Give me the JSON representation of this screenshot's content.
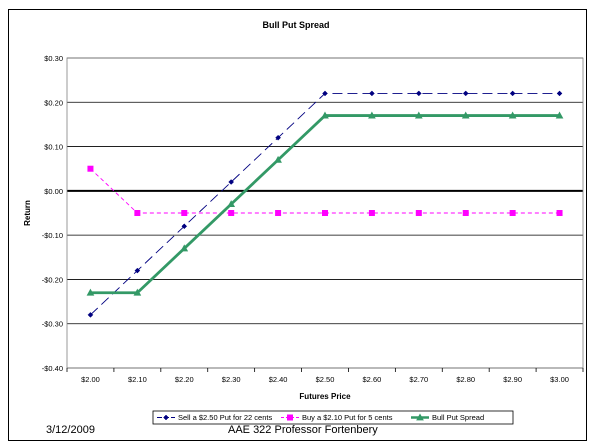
{
  "chart_data": {
    "type": "line",
    "title": "Bull Put Spread",
    "xlabel": "Futures Price",
    "ylabel": "Return",
    "categories": [
      "$2.00",
      "$2.10",
      "$2.20",
      "$2.30",
      "$2.40",
      "$2.50",
      "$2.60",
      "$2.70",
      "$2.80",
      "$2.90",
      "$3.00"
    ],
    "ylim": [
      -0.4,
      0.3
    ],
    "yticks": [
      {
        "value": 0.3,
        "label": "$0.30"
      },
      {
        "value": 0.2,
        "label": "$0.20"
      },
      {
        "value": 0.1,
        "label": "$0.10"
      },
      {
        "value": 0.0,
        "label": "$0.00"
      },
      {
        "value": -0.1,
        "label": "-$0.10"
      },
      {
        "value": -0.2,
        "label": "-$0.20"
      },
      {
        "value": -0.3,
        "label": "-$0.30"
      },
      {
        "value": -0.4,
        "label": "-$0.40"
      }
    ],
    "grid": true,
    "legend_position": "bottom",
    "series": [
      {
        "name": "Sell a $2.50 Put for 22 cents",
        "color": "#000080",
        "dash": "dashed",
        "marker": "diamond",
        "values": [
          -0.28,
          -0.18,
          -0.08,
          0.02,
          0.12,
          0.22,
          0.22,
          0.22,
          0.22,
          0.22,
          0.22
        ]
      },
      {
        "name": "Buy a $2.10 Put for 5 cents",
        "color": "#ff00ff",
        "dash": "dashed",
        "marker": "square",
        "values": [
          0.05,
          -0.05,
          -0.05,
          -0.05,
          -0.05,
          -0.05,
          -0.05,
          -0.05,
          -0.05,
          -0.05,
          -0.05
        ]
      },
      {
        "name": "Bull Put Spread",
        "color": "#339966",
        "dash": "solid",
        "marker": "triangle",
        "values": [
          -0.23,
          -0.23,
          -0.13,
          -0.03,
          0.07,
          0.17,
          0.17,
          0.17,
          0.17,
          0.17,
          0.17
        ]
      }
    ]
  },
  "footer": {
    "date": "3/12/2009",
    "course": "AAE 322  Professor Fortenbery"
  }
}
